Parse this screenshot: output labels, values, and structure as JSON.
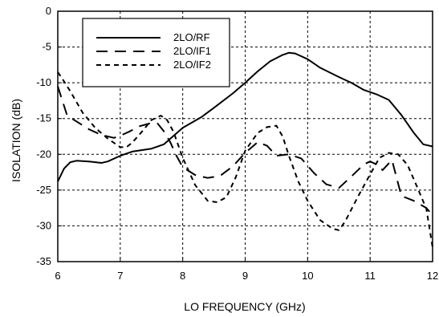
{
  "chart_data": {
    "type": "line",
    "title": "",
    "xlabel": "LO FREQUENCY (GHz)",
    "ylabel": "ISOLATION (dB)",
    "xlim": [
      6,
      12
    ],
    "ylim": [
      -35,
      0
    ],
    "x_ticks": [
      6,
      7,
      8,
      9,
      10,
      11,
      12
    ],
    "y_ticks": [
      0,
      -5,
      -10,
      -15,
      -20,
      -25,
      -30,
      -35
    ],
    "x_tick_labels": [
      "6",
      "7",
      "8",
      "9",
      "10",
      "11",
      "12"
    ],
    "y_tick_labels": [
      "0",
      "-5",
      "-10",
      "-15",
      "-20",
      "-25",
      "-30",
      "-35"
    ],
    "grid": true,
    "legend_position": "top-left",
    "series": [
      {
        "name": "2LO/RF",
        "style": "solid",
        "color": "#000000",
        "x": [
          6.0,
          6.1,
          6.2,
          6.3,
          6.5,
          6.7,
          6.8,
          7.0,
          7.2,
          7.5,
          7.7,
          8.0,
          8.3,
          8.5,
          8.8,
          9.0,
          9.2,
          9.4,
          9.6,
          9.7,
          9.8,
          10.0,
          10.2,
          10.5,
          10.7,
          10.9,
          11.1,
          11.3,
          11.5,
          11.7,
          11.85,
          12.0
        ],
        "y": [
          -23.8,
          -22.0,
          -21.1,
          -20.9,
          -21.0,
          -21.2,
          -21.0,
          -20.2,
          -19.6,
          -19.2,
          -18.6,
          -16.3,
          -14.8,
          -13.5,
          -11.5,
          -10.0,
          -8.4,
          -7.0,
          -6.1,
          -5.8,
          -5.9,
          -6.7,
          -7.9,
          -9.2,
          -10.0,
          -11.0,
          -11.6,
          -12.4,
          -14.5,
          -17.0,
          -18.6,
          -18.9
        ]
      },
      {
        "name": "2LO/IF1",
        "style": "long-dash",
        "color": "#000000",
        "x": [
          6.0,
          6.15,
          6.3,
          6.5,
          6.7,
          6.9,
          7.0,
          7.15,
          7.3,
          7.5,
          7.6,
          7.7,
          7.8,
          7.9,
          8.0,
          8.2,
          8.4,
          8.6,
          8.8,
          9.0,
          9.2,
          9.35,
          9.5,
          9.7,
          9.9,
          10.1,
          10.3,
          10.5,
          10.7,
          10.9,
          11.0,
          11.1,
          11.2,
          11.35,
          11.5,
          11.7,
          11.9,
          12.0
        ],
        "y": [
          -10.5,
          -14.6,
          -15.4,
          -16.5,
          -17.3,
          -17.7,
          -17.4,
          -16.8,
          -16.1,
          -15.6,
          -15.7,
          -16.8,
          -18.3,
          -20.2,
          -21.8,
          -22.9,
          -23.3,
          -23.0,
          -21.7,
          -19.8,
          -18.3,
          -18.8,
          -20.2,
          -20.0,
          -20.6,
          -22.6,
          -24.2,
          -24.7,
          -23.1,
          -21.4,
          -21.0,
          -21.4,
          -22.2,
          -20.8,
          -25.8,
          -26.5,
          -27.5,
          -28.5
        ]
      },
      {
        "name": "2LO/IF2",
        "style": "short-dash",
        "color": "#000000",
        "x": [
          6.0,
          6.1,
          6.2,
          6.4,
          6.6,
          6.8,
          7.0,
          7.1,
          7.2,
          7.35,
          7.5,
          7.65,
          7.75,
          7.85,
          8.0,
          8.2,
          8.4,
          8.55,
          8.7,
          8.85,
          9.0,
          9.2,
          9.35,
          9.5,
          9.6,
          9.7,
          9.85,
          10.0,
          10.2,
          10.4,
          10.5,
          10.6,
          10.8,
          11.0,
          11.15,
          11.3,
          11.45,
          11.6,
          11.75,
          11.9,
          12.0
        ],
        "y": [
          -8.5,
          -9.8,
          -11.2,
          -14.2,
          -16.3,
          -17.8,
          -19.0,
          -19.0,
          -18.3,
          -16.8,
          -15.2,
          -14.6,
          -15.2,
          -16.8,
          -20.5,
          -24.3,
          -26.5,
          -26.7,
          -26.0,
          -23.2,
          -19.5,
          -17.0,
          -16.2,
          -16.0,
          -17.5,
          -20.2,
          -23.8,
          -26.5,
          -29.2,
          -30.4,
          -30.6,
          -29.4,
          -26.0,
          -22.8,
          -20.5,
          -19.8,
          -20.0,
          -21.5,
          -24.5,
          -27.6,
          -33.0
        ]
      }
    ]
  }
}
